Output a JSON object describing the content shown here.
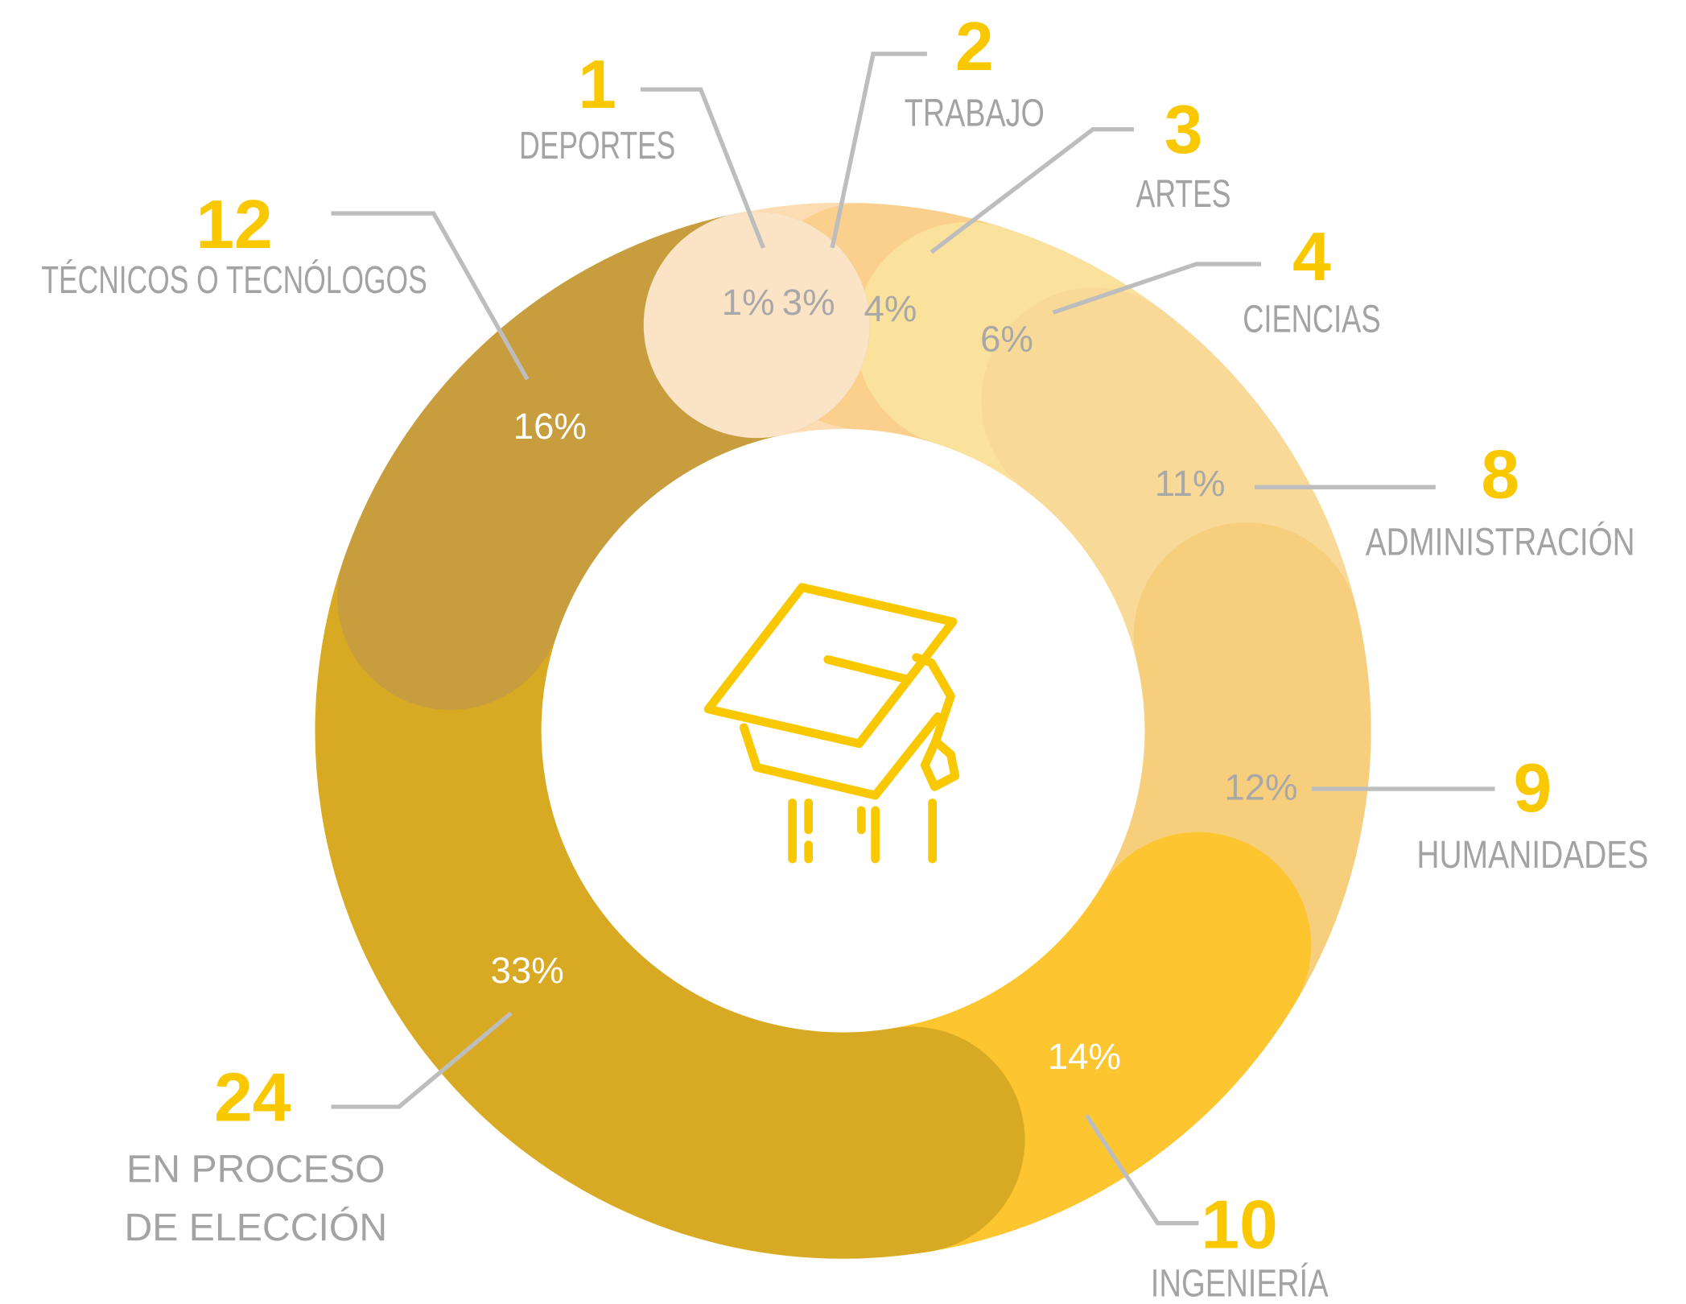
{
  "chart_data": {
    "type": "donut",
    "categories": [
      "DEPORTES",
      "TRABAJO",
      "ARTES",
      "CIENCIAS",
      "ADMINISTRACIÓN",
      "HUMANIDADES",
      "INGENIERÍA",
      "EN PROCESO DE ELECCIÓN",
      "TÉCNICOS O TECNÓLOGOS"
    ],
    "values": [
      1,
      2,
      3,
      4,
      8,
      9,
      10,
      24,
      12
    ],
    "percent": [
      1,
      3,
      4,
      6,
      11,
      12,
      14,
      33,
      16
    ],
    "percent_labels": [
      "1%",
      "3%",
      "4%",
      "6%",
      "11%",
      "12%",
      "14%",
      "33%",
      "16%"
    ],
    "colors": [
      "#fbe3c6",
      "#fcdcb0",
      "#fbcf8c",
      "#fae19c",
      "#f9d997",
      "#f7cf7c",
      "#fdc52f",
      "#d8aa24",
      "#c79d3d"
    ]
  }
}
